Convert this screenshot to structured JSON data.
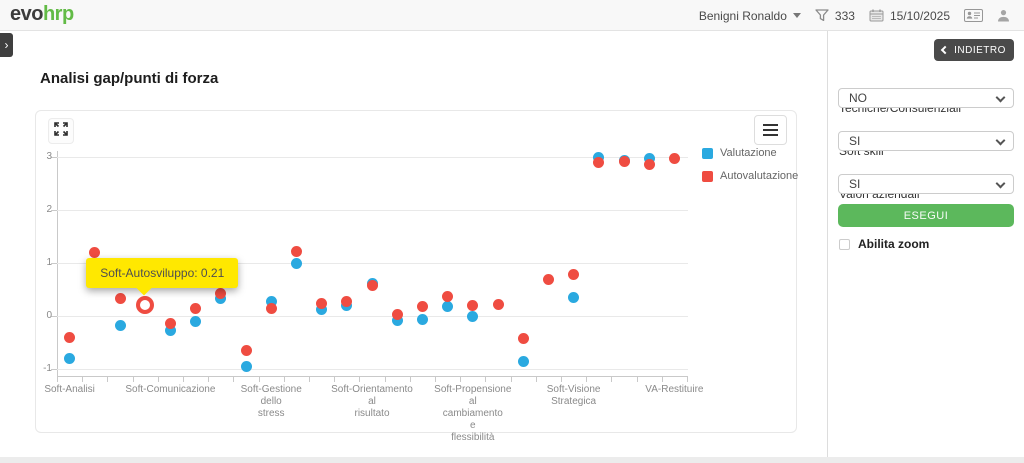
{
  "topbar": {
    "logo_evo": "evo",
    "logo_hrp": "hrp",
    "user_name": "Benigni Ronaldo",
    "filter_count": "333",
    "date": "15/10/2025"
  },
  "page": {
    "title": "Analisi gap/punti di forza"
  },
  "sidebar": {
    "back_label": "INDIETRO",
    "fields": [
      {
        "label": "Tecniche/Consulenziali",
        "value": "NO"
      },
      {
        "label": "Soft skill",
        "value": "SI"
      },
      {
        "label": "Valori aziendali",
        "value": "SI"
      }
    ],
    "run_label": "ESEGUI",
    "zoom_checkbox_label": "Abilita zoom",
    "zoom_checked": false
  },
  "chart_data": {
    "type": "scatter",
    "n_categories": 25,
    "categories_visible": [
      {
        "index": 0,
        "label": "Soft-Analisi"
      },
      {
        "index": 4,
        "label": "Soft-Comunicazione"
      },
      {
        "index": 8,
        "label": "Soft-Gestione dello stress"
      },
      {
        "index": 12,
        "label": "Soft-Orientamento al risultato"
      },
      {
        "index": 16,
        "label": "Soft-Propensione al cambiamento e flessibilità"
      },
      {
        "index": 20,
        "label": "Soft-Visione Strategica"
      },
      {
        "index": 24,
        "label": "VA-Restituire"
      }
    ],
    "series": [
      {
        "name": "Valutazione",
        "color": "#2aa9e0",
        "values": [
          -0.8,
          null,
          -0.17,
          null,
          -0.28,
          -0.11,
          0.33,
          -0.95,
          0.28,
          1.0,
          0.12,
          0.19,
          0.62,
          -0.08,
          -0.07,
          0.17,
          0.0,
          null,
          -0.86,
          null,
          0.34,
          3.0,
          2.94,
          2.97,
          null
        ]
      },
      {
        "name": "Autovalutazione",
        "color": "#ef4c41",
        "values": [
          -0.4,
          1.2,
          0.33,
          0.21,
          -0.14,
          0.14,
          0.42,
          -0.65,
          0.14,
          1.22,
          0.24,
          0.28,
          0.58,
          0.03,
          0.18,
          0.37,
          0.19,
          0.22,
          -0.43,
          0.68,
          0.79,
          2.89,
          2.91,
          2.86,
          2.97
        ]
      }
    ],
    "yticks": [
      -1,
      0,
      1,
      2,
      3
    ],
    "ylim": [
      -1.15,
      3.1
    ],
    "grid": true,
    "legend_position": "right-top",
    "hover_point": {
      "category": "Soft-Autosviluppo",
      "category_index": 3,
      "series": "Autovalutazione",
      "value": 0.21,
      "tooltip_text": "Soft-Autosviluppo: 0.21",
      "tooltip_color": "#ffe800"
    }
  }
}
